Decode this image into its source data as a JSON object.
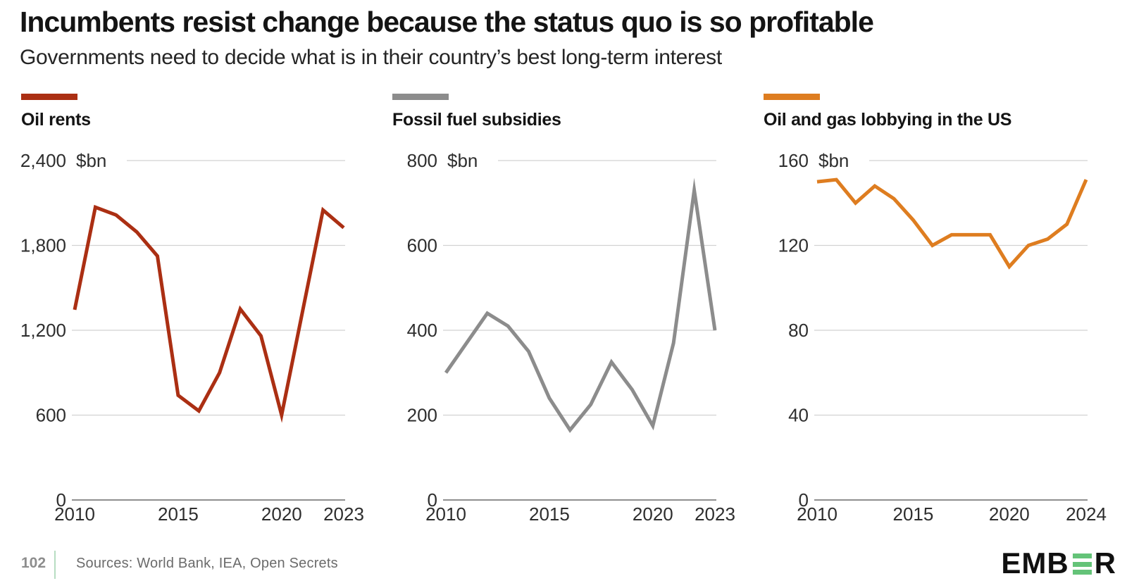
{
  "header": {
    "title": "Incumbents resist change because the status quo is so profitable",
    "subtitle": "Governments need to decide what is in their country’s best long-term interest"
  },
  "chart_data": [
    {
      "type": "line",
      "title": "Oil rents",
      "unit_label": "$bn",
      "series_color": "#ab2f13",
      "x": [
        2010,
        2011,
        2012,
        2013,
        2014,
        2015,
        2016,
        2017,
        2018,
        2019,
        2020,
        2021,
        2022,
        2023
      ],
      "values": [
        1345,
        2070,
        2015,
        1895,
        1725,
        740,
        630,
        900,
        1350,
        1160,
        600,
        1325,
        2050,
        1925
      ],
      "ylim": [
        0,
        2400
      ],
      "yticks": [
        0,
        600,
        1200,
        1800,
        2400
      ],
      "ytick_labels": [
        "0",
        "600",
        "1,200",
        "1,800",
        "2,400"
      ],
      "xticks": [
        2010,
        2015,
        2020,
        2023
      ],
      "grid": true,
      "legend_position": "top-left"
    },
    {
      "type": "line",
      "title": "Fossil fuel subsidies",
      "unit_label": "$bn",
      "series_color": "#8c8c8c",
      "x": [
        2010,
        2011,
        2012,
        2013,
        2014,
        2015,
        2016,
        2017,
        2018,
        2019,
        2020,
        2021,
        2022,
        2023
      ],
      "values": [
        300,
        370,
        440,
        410,
        350,
        240,
        165,
        225,
        325,
        260,
        175,
        370,
        730,
        400
      ],
      "ylim": [
        0,
        800
      ],
      "yticks": [
        0,
        200,
        400,
        600,
        800
      ],
      "ytick_labels": [
        "0",
        "200",
        "400",
        "600",
        "800"
      ],
      "xticks": [
        2010,
        2015,
        2020,
        2023
      ],
      "grid": true,
      "legend_position": "top-left"
    },
    {
      "type": "line",
      "title": "Oil and gas lobbying in the US",
      "unit_label": "$bn",
      "series_color": "#de7d20",
      "x": [
        2010,
        2011,
        2012,
        2013,
        2014,
        2015,
        2016,
        2017,
        2018,
        2019,
        2020,
        2021,
        2022,
        2023,
        2024
      ],
      "values": [
        150,
        151,
        140,
        148,
        142,
        132,
        120,
        125,
        125,
        125,
        110,
        120,
        123,
        130,
        151
      ],
      "ylim": [
        0,
        160
      ],
      "yticks": [
        0,
        40,
        80,
        120,
        160
      ],
      "ytick_labels": [
        "0",
        "40",
        "80",
        "120",
        "160"
      ],
      "xticks": [
        2010,
        2015,
        2020,
        2024
      ],
      "grid": true,
      "legend_position": "top-left"
    }
  ],
  "footer": {
    "page_number": "102",
    "sources": "Sources: World Bank, IEA, Open Secrets",
    "divider_color": "#b7ddc1",
    "logo": {
      "text_prefix": "EMB",
      "text_suffix": "R",
      "bars_color": "#64c378",
      "text_color": "#101010"
    }
  }
}
